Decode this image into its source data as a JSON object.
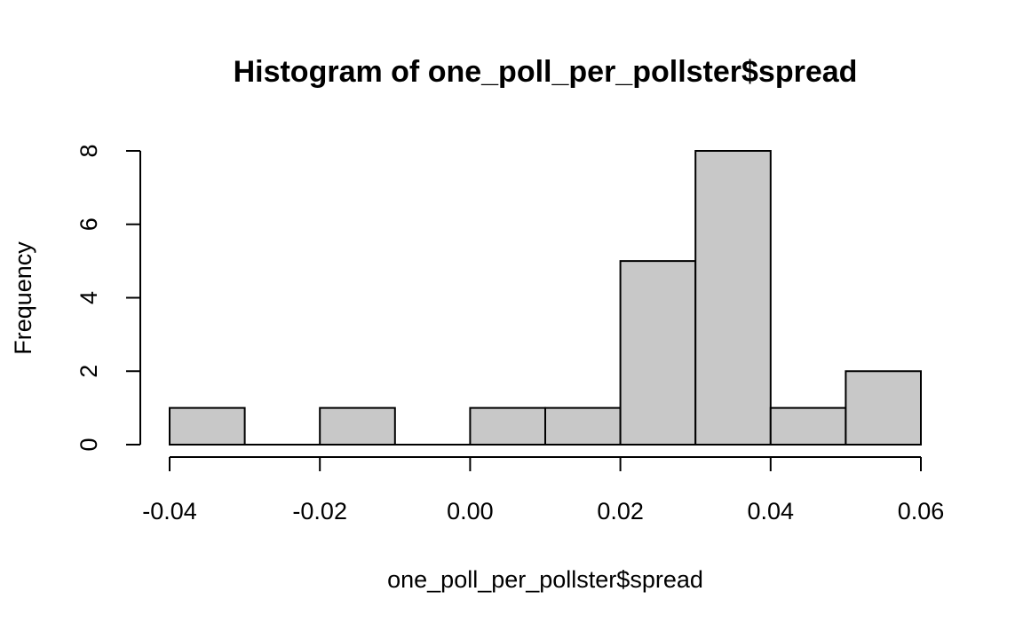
{
  "chart_data": {
    "type": "bar",
    "title": "Histogram of one_poll_per_pollster$spread",
    "xlabel": "one_poll_per_pollster$spread",
    "ylabel": "Frequency",
    "bins": [
      {
        "x0": -0.04,
        "x1": -0.03,
        "count": 1
      },
      {
        "x0": -0.03,
        "x1": -0.02,
        "count": 0
      },
      {
        "x0": -0.02,
        "x1": -0.01,
        "count": 1
      },
      {
        "x0": -0.01,
        "x1": 0.0,
        "count": 0
      },
      {
        "x0": 0.0,
        "x1": 0.01,
        "count": 1
      },
      {
        "x0": 0.01,
        "x1": 0.02,
        "count": 1
      },
      {
        "x0": 0.02,
        "x1": 0.03,
        "count": 5
      },
      {
        "x0": 0.03,
        "x1": 0.04,
        "count": 8
      },
      {
        "x0": 0.04,
        "x1": 0.05,
        "count": 1
      },
      {
        "x0": 0.05,
        "x1": 0.06,
        "count": 2
      }
    ],
    "xlim": [
      -0.04,
      0.06
    ],
    "ylim": [
      0,
      8
    ],
    "x_ticks": [
      -0.04,
      -0.02,
      0.0,
      0.02,
      0.04,
      0.06
    ],
    "x_tick_labels": [
      "-0.04",
      "-0.02",
      "0.00",
      "0.02",
      "0.04",
      "0.06"
    ],
    "y_ticks": [
      0,
      2,
      4,
      6,
      8
    ],
    "y_tick_labels": [
      "0",
      "2",
      "4",
      "6",
      "8"
    ],
    "bar_color": "#c8c8c8",
    "edge_color": "#000000",
    "grid": false,
    "legend": "none"
  }
}
